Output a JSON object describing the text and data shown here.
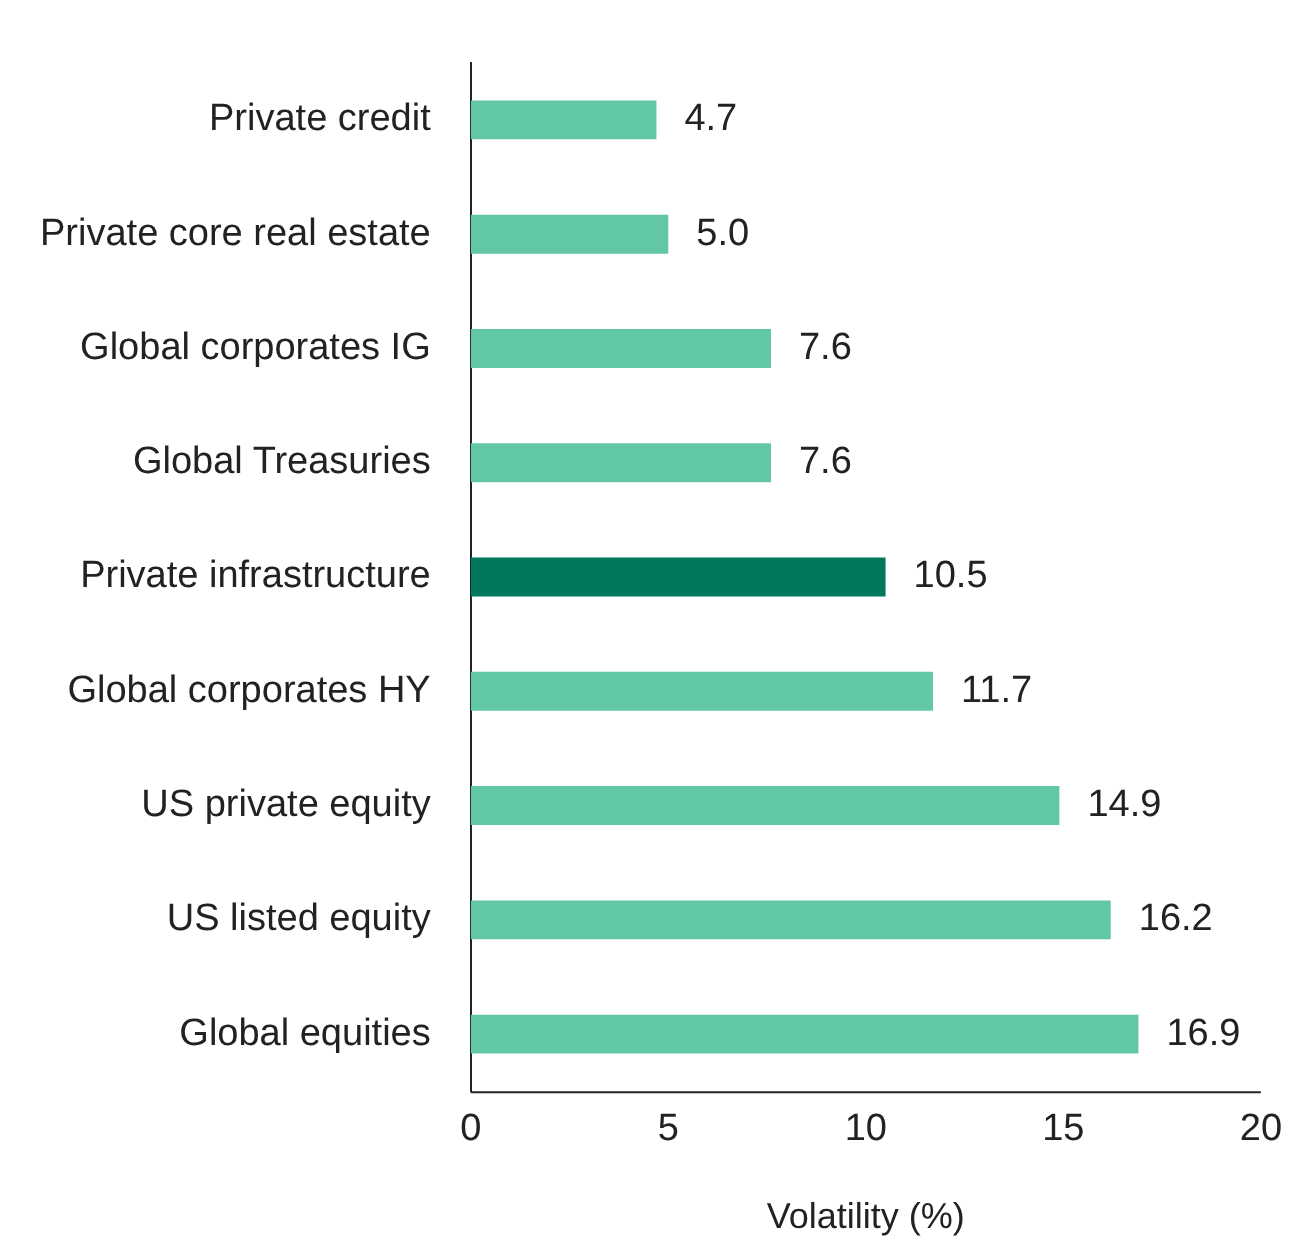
{
  "chart_data": {
    "type": "bar",
    "orientation": "horizontal",
    "xlabel": "Volatility (%)",
    "categories": [
      "Private credit",
      "Private core real estate",
      "Global corporates IG",
      "Global Treasuries",
      "Private infrastructure",
      "Global corporates HY",
      "US private equity",
      "US listed equity",
      "Global equities"
    ],
    "values": [
      4.7,
      5.0,
      7.6,
      7.6,
      10.5,
      11.7,
      14.9,
      16.2,
      16.9
    ],
    "colors": [
      "#62c8a4",
      "#62c8a4",
      "#62c8a4",
      "#62c8a4",
      "#00785c",
      "#62c8a4",
      "#62c8a4",
      "#62c8a4",
      "#62c8a4"
    ],
    "value_labels": [
      "4.7",
      "5.0",
      "7.6",
      "7.6",
      "10.5",
      "11.7",
      "14.9",
      "16.2",
      "16.9"
    ],
    "xlim": [
      0,
      20
    ],
    "xticks": [
      0,
      5,
      10,
      15,
      20
    ],
    "grid": false,
    "legend": false
  }
}
